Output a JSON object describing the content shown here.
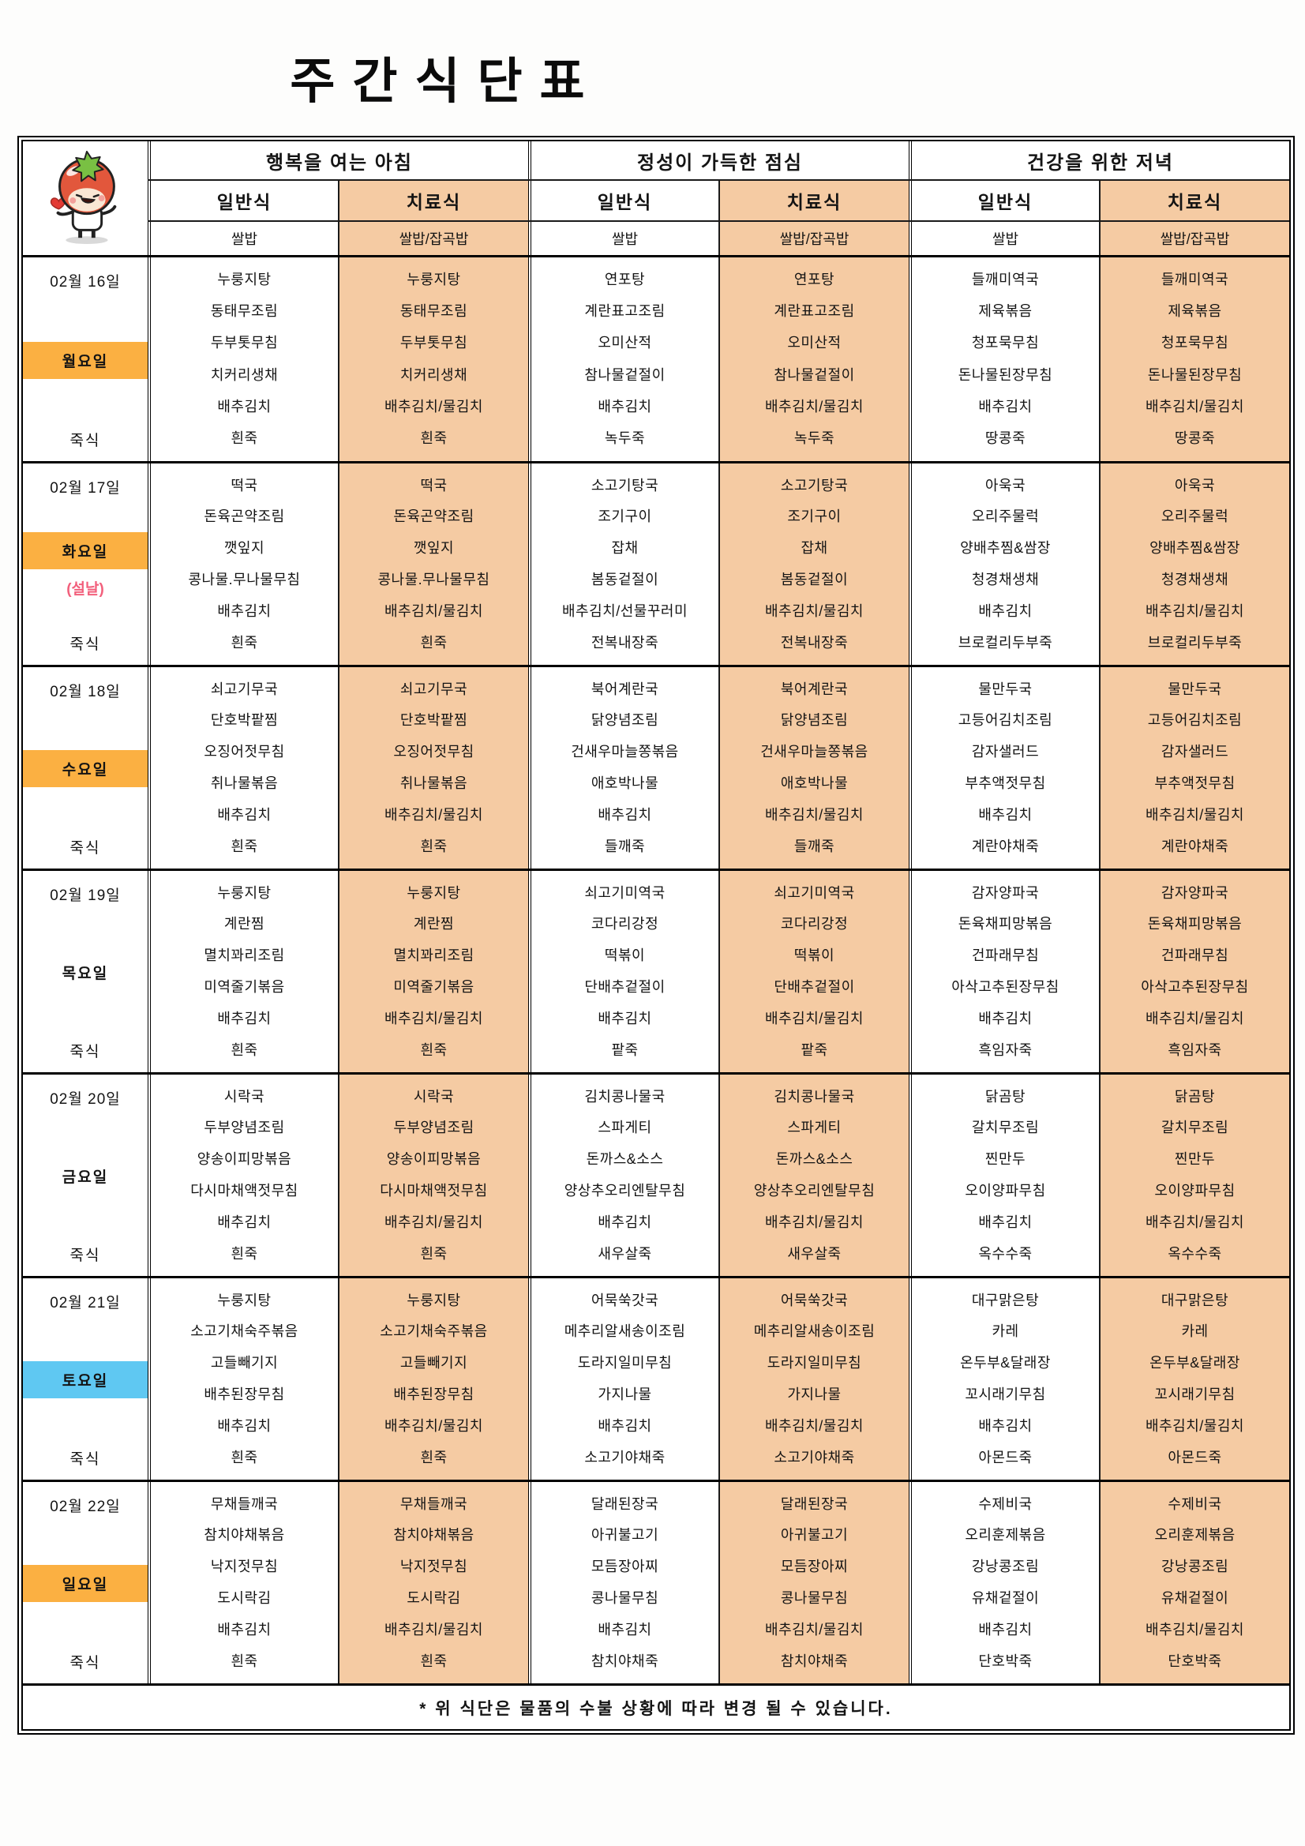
{
  "title": "주간식단표",
  "footer_note": "* 위 식단은 물품의 수불 상황에 따라 변경 될 수 있습니다.",
  "colors": {
    "therapy_bg": "#F5CBA3",
    "holiday_bg": "#FBB042",
    "saturday_bg": "#5FC8F2",
    "holiday_note_text": "#F2607C"
  },
  "mascot": "tomato-character",
  "header": {
    "breakfast_title": "행복을 여는 아침",
    "lunch_title": "정성이 가득한 점심",
    "dinner_title": "건강을 위한 저녁",
    "regular_label": "일반식",
    "therapy_label": "치료식",
    "rice_regular": "쌀밥",
    "rice_therapy": "쌀밥/잡곡밥"
  },
  "days": [
    {
      "date": "02월 16일",
      "weekday": "월요일",
      "weekday_highlight": "orange",
      "note": "",
      "porridge_label": "죽식",
      "meals": {
        "breakfast_regular": [
          "누룽지탕",
          "동태무조림",
          "두부톳무침",
          "치커리생채",
          "배추김치",
          "흰죽"
        ],
        "breakfast_therapy": [
          "누룽지탕",
          "동태무조림",
          "두부톳무침",
          "치커리생채",
          "배추김치/물김치",
          "흰죽"
        ],
        "lunch_regular": [
          "연포탕",
          "계란표고조림",
          "오미산적",
          "참나물겉절이",
          "배추김치",
          "녹두죽"
        ],
        "lunch_therapy": [
          "연포탕",
          "계란표고조림",
          "오미산적",
          "참나물겉절이",
          "배추김치/물김치",
          "녹두죽"
        ],
        "dinner_regular": [
          "들깨미역국",
          "제육볶음",
          "청포묵무침",
          "돈나물된장무침",
          "배추김치",
          "땅콩죽"
        ],
        "dinner_therapy": [
          "들깨미역국",
          "제육볶음",
          "청포묵무침",
          "돈나물된장무침",
          "배추김치/물김치",
          "땅콩죽"
        ]
      }
    },
    {
      "date": "02월 17일",
      "weekday": "화요일",
      "weekday_highlight": "orange",
      "note": "(설날)",
      "porridge_label": "죽식",
      "meals": {
        "breakfast_regular": [
          "떡국",
          "돈육곤약조림",
          "깻잎지",
          "콩나물.무나물무침",
          "배추김치",
          "흰죽"
        ],
        "breakfast_therapy": [
          "떡국",
          "돈육곤약조림",
          "깻잎지",
          "콩나물.무나물무침",
          "배추김치/물김치",
          "흰죽"
        ],
        "lunch_regular": [
          "소고기탕국",
          "조기구이",
          "잡채",
          "봄동겉절이",
          "배추김치/선물꾸러미",
          "전복내장죽"
        ],
        "lunch_therapy": [
          "소고기탕국",
          "조기구이",
          "잡채",
          "봄동겉절이",
          "배추김치/물김치",
          "전복내장죽"
        ],
        "dinner_regular": [
          "아욱국",
          "오리주물럭",
          "양배추찜&쌈장",
          "청경채생채",
          "배추김치",
          "브로컬리두부죽"
        ],
        "dinner_therapy": [
          "아욱국",
          "오리주물럭",
          "양배추찜&쌈장",
          "청경채생채",
          "배추김치/물김치",
          "브로컬리두부죽"
        ]
      }
    },
    {
      "date": "02월 18일",
      "weekday": "수요일",
      "weekday_highlight": "orange",
      "note": "",
      "porridge_label": "죽식",
      "meals": {
        "breakfast_regular": [
          "쇠고기무국",
          "단호박팥찜",
          "오징어젓무침",
          "취나물볶음",
          "배추김치",
          "흰죽"
        ],
        "breakfast_therapy": [
          "쇠고기무국",
          "단호박팥찜",
          "오징어젓무침",
          "취나물볶음",
          "배추김치/물김치",
          "흰죽"
        ],
        "lunch_regular": [
          "북어계란국",
          "닭양념조림",
          "건새우마늘쫑볶음",
          "애호박나물",
          "배추김치",
          "들깨죽"
        ],
        "lunch_therapy": [
          "북어계란국",
          "닭양념조림",
          "건새우마늘쫑볶음",
          "애호박나물",
          "배추김치/물김치",
          "들깨죽"
        ],
        "dinner_regular": [
          "물만두국",
          "고등어김치조림",
          "감자샐러드",
          "부추액젓무침",
          "배추김치",
          "계란야채죽"
        ],
        "dinner_therapy": [
          "물만두국",
          "고등어김치조림",
          "감자샐러드",
          "부추액젓무침",
          "배추김치/물김치",
          "계란야채죽"
        ]
      }
    },
    {
      "date": "02월 19일",
      "weekday": "목요일",
      "weekday_highlight": "none",
      "note": "",
      "porridge_label": "죽식",
      "meals": {
        "breakfast_regular": [
          "누룽지탕",
          "계란찜",
          "멸치꽈리조림",
          "미역줄기볶음",
          "배추김치",
          "흰죽"
        ],
        "breakfast_therapy": [
          "누룽지탕",
          "계란찜",
          "멸치꽈리조림",
          "미역줄기볶음",
          "배추김치/물김치",
          "흰죽"
        ],
        "lunch_regular": [
          "쇠고기미역국",
          "코다리강정",
          "떡볶이",
          "단배추겉절이",
          "배추김치",
          "팥죽"
        ],
        "lunch_therapy": [
          "쇠고기미역국",
          "코다리강정",
          "떡볶이",
          "단배추겉절이",
          "배추김치/물김치",
          "팥죽"
        ],
        "dinner_regular": [
          "감자양파국",
          "돈육채피망볶음",
          "건파래무침",
          "아삭고추된장무침",
          "배추김치",
          "흑임자죽"
        ],
        "dinner_therapy": [
          "감자양파국",
          "돈육채피망볶음",
          "건파래무침",
          "아삭고추된장무침",
          "배추김치/물김치",
          "흑임자죽"
        ]
      }
    },
    {
      "date": "02월 20일",
      "weekday": "금요일",
      "weekday_highlight": "none",
      "note": "",
      "porridge_label": "죽식",
      "meals": {
        "breakfast_regular": [
          "시락국",
          "두부양념조림",
          "양송이피망볶음",
          "다시마채액젓무침",
          "배추김치",
          "흰죽"
        ],
        "breakfast_therapy": [
          "시락국",
          "두부양념조림",
          "양송이피망볶음",
          "다시마채액젓무침",
          "배추김치/물김치",
          "흰죽"
        ],
        "lunch_regular": [
          "김치콩나물국",
          "스파게티",
          "돈까스&소스",
          "양상추오리엔탈무침",
          "배추김치",
          "새우살죽"
        ],
        "lunch_therapy": [
          "김치콩나물국",
          "스파게티",
          "돈까스&소스",
          "양상추오리엔탈무침",
          "배추김치/물김치",
          "새우살죽"
        ],
        "dinner_regular": [
          "닭곰탕",
          "갈치무조림",
          "찐만두",
          "오이양파무침",
          "배추김치",
          "옥수수죽"
        ],
        "dinner_therapy": [
          "닭곰탕",
          "갈치무조림",
          "찐만두",
          "오이양파무침",
          "배추김치/물김치",
          "옥수수죽"
        ]
      }
    },
    {
      "date": "02월 21일",
      "weekday": "토요일",
      "weekday_highlight": "blue",
      "note": "",
      "porridge_label": "죽식",
      "meals": {
        "breakfast_regular": [
          "누룽지탕",
          "소고기채숙주볶음",
          "고들빼기지",
          "배추된장무침",
          "배추김치",
          "흰죽"
        ],
        "breakfast_therapy": [
          "누룽지탕",
          "소고기채숙주볶음",
          "고들빼기지",
          "배추된장무침",
          "배추김치/물김치",
          "흰죽"
        ],
        "lunch_regular": [
          "어묵쑥갓국",
          "메추리알새송이조림",
          "도라지일미무침",
          "가지나물",
          "배추김치",
          "소고기야채죽"
        ],
        "lunch_therapy": [
          "어묵쑥갓국",
          "메추리알새송이조림",
          "도라지일미무침",
          "가지나물",
          "배추김치/물김치",
          "소고기야채죽"
        ],
        "dinner_regular": [
          "대구맑은탕",
          "카레",
          "온두부&달래장",
          "꼬시래기무침",
          "배추김치",
          "아몬드죽"
        ],
        "dinner_therapy": [
          "대구맑은탕",
          "카레",
          "온두부&달래장",
          "꼬시래기무침",
          "배추김치/물김치",
          "아몬드죽"
        ]
      }
    },
    {
      "date": "02월 22일",
      "weekday": "일요일",
      "weekday_highlight": "orange",
      "note": "",
      "porridge_label": "죽식",
      "meals": {
        "breakfast_regular": [
          "무채들깨국",
          "참치야채볶음",
          "낙지젓무침",
          "도시락김",
          "배추김치",
          "흰죽"
        ],
        "breakfast_therapy": [
          "무채들깨국",
          "참치야채볶음",
          "낙지젓무침",
          "도시락김",
          "배추김치/물김치",
          "흰죽"
        ],
        "lunch_regular": [
          "달래된장국",
          "아귀불고기",
          "모듬장아찌",
          "콩나물무침",
          "배추김치",
          "참치야채죽"
        ],
        "lunch_therapy": [
          "달래된장국",
          "아귀불고기",
          "모듬장아찌",
          "콩나물무침",
          "배추김치/물김치",
          "참치야채죽"
        ],
        "dinner_regular": [
          "수제비국",
          "오리훈제볶음",
          "강낭콩조림",
          "유채겉절이",
          "배추김치",
          "단호박죽"
        ],
        "dinner_therapy": [
          "수제비국",
          "오리훈제볶음",
          "강낭콩조림",
          "유채겉절이",
          "배추김치/물김치",
          "단호박죽"
        ]
      }
    }
  ]
}
